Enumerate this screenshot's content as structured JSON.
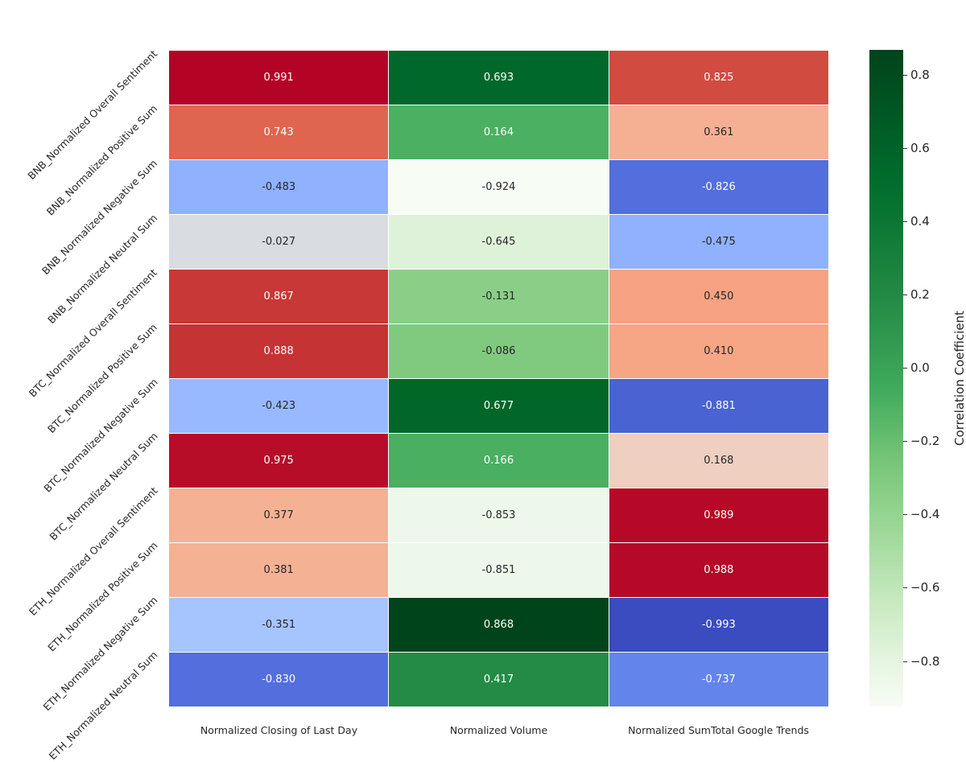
{
  "chart_data": {
    "type": "heatmap",
    "title": "",
    "xlabel": "",
    "ylabel": "",
    "columns": [
      "Normalized Closing of Last Day",
      "Normalized Volume",
      "Normalized SumTotal Google Trends"
    ],
    "rows": [
      "BNB_Normalized Overall Sentiment",
      "BNB_Normalized Positive Sum",
      "BNB_Normalized Negative Sum",
      "BNB_Normalized Neutral Sum",
      "BTC_Normalized Overall Sentiment",
      "BTC_Normalized Positive Sum",
      "BTC_Normalized Negative Sum",
      "BTC_Normalized Neutral Sum",
      "ETH_Normalized Overall Sentiment",
      "ETH_Normalized Positive Sum",
      "ETH_Normalized Negative Sum",
      "ETH_Normalized Neutral Sum"
    ],
    "values": [
      [
        0.991,
        0.693,
        0.825
      ],
      [
        0.743,
        0.164,
        0.361
      ],
      [
        -0.483,
        -0.924,
        -0.826
      ],
      [
        -0.027,
        -0.645,
        -0.475
      ],
      [
        0.867,
        -0.131,
        0.45
      ],
      [
        0.888,
        -0.086,
        0.41
      ],
      [
        -0.423,
        0.677,
        -0.881
      ],
      [
        0.975,
        0.166,
        0.168
      ],
      [
        0.377,
        -0.853,
        0.989
      ],
      [
        0.381,
        -0.851,
        0.988
      ],
      [
        -0.351,
        0.868,
        -0.993
      ],
      [
        -0.83,
        0.417,
        -0.737
      ]
    ],
    "cell_colors": [
      [
        "#b40426",
        "#00682a",
        "#d24b40"
      ],
      [
        "#e0654f",
        "#4bb062",
        "#f5b093"
      ],
      [
        "#8fb1fe",
        "#f7fcf5",
        "#536edd"
      ],
      [
        "#d9dce1",
        "#def2d9",
        "#8fb1fe"
      ],
      [
        "#c83836",
        "#8ace88",
        "#f6a283"
      ],
      [
        "#c53334",
        "#80ca80",
        "#f6a585"
      ],
      [
        "#98b9ff",
        "#006729",
        "#4a63d3"
      ],
      [
        "#b70d28",
        "#4aaf61",
        "#efcfbf"
      ],
      [
        "#f5b194",
        "#edf8ea",
        "#b50927"
      ],
      [
        "#f5b194",
        "#edf8ea",
        "#b50927"
      ],
      [
        "#a6c4fe",
        "#00441b",
        "#3b4cc0"
      ],
      [
        "#536edd",
        "#238b45",
        "#6384eb"
      ]
    ],
    "text_colors": [
      [
        "#ffffff",
        "#ffffff",
        "#ffffff"
      ],
      [
        "#ffffff",
        "#ffffff",
        "#262626"
      ],
      [
        "#262626",
        "#262626",
        "#ffffff"
      ],
      [
        "#262626",
        "#262626",
        "#262626"
      ],
      [
        "#ffffff",
        "#262626",
        "#262626"
      ],
      [
        "#ffffff",
        "#262626",
        "#262626"
      ],
      [
        "#262626",
        "#ffffff",
        "#ffffff"
      ],
      [
        "#ffffff",
        "#ffffff",
        "#262626"
      ],
      [
        "#262626",
        "#262626",
        "#ffffff"
      ],
      [
        "#262626",
        "#262626",
        "#ffffff"
      ],
      [
        "#262626",
        "#ffffff",
        "#ffffff"
      ],
      [
        "#ffffff",
        "#ffffff",
        "#ffffff"
      ]
    ],
    "colorbar": {
      "label": "Correlation Coefficient",
      "colormap": "Greens",
      "range": [
        -0.924,
        0.868
      ],
      "ticks": [
        0.8,
        0.6,
        0.4,
        0.2,
        0.0,
        -0.2,
        -0.4,
        -0.6,
        -0.8
      ],
      "tick_labels": [
        "0.8",
        "0.6",
        "0.4",
        "0.2",
        "0.0",
        "−0.2",
        "−0.4",
        "−0.6",
        "−0.8"
      ]
    },
    "grid": false,
    "legend_position": "right"
  }
}
